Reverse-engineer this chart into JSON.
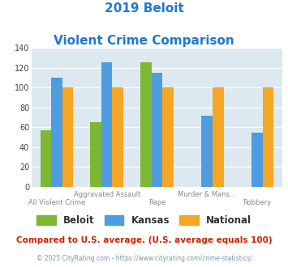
{
  "title_line1": "2019 Beloit",
  "title_line2": "Violent Crime Comparison",
  "title_color": "#1e7acc",
  "categories": [
    "All Violent Crime",
    "Aggravated Assault",
    "Rape",
    "Murder & Mans...",
    "Robbery"
  ],
  "top_labels": [
    "",
    "Aggravated Assault",
    "",
    "Murder & Mans...",
    ""
  ],
  "bot_labels": [
    "All Violent Crime",
    "",
    "Rape",
    "",
    "Robbery"
  ],
  "series": {
    "Beloit": [
      57,
      65,
      126,
      null,
      null
    ],
    "Kansas": [
      110,
      126,
      115,
      72,
      55
    ],
    "National": [
      100,
      100,
      100,
      100,
      100
    ]
  },
  "colors": {
    "Beloit": "#7db832",
    "Kansas": "#4d9de0",
    "National": "#f5a623"
  },
  "ylim": [
    0,
    140
  ],
  "yticks": [
    0,
    20,
    40,
    60,
    80,
    100,
    120,
    140
  ],
  "plot_bg": "#dce9f0",
  "grid_color": "#ffffff",
  "footnote1": "Compared to U.S. average. (U.S. average equals 100)",
  "footnote2": "© 2025 CityRating.com - https://www.cityrating.com/crime-statistics/",
  "footnote1_color": "#cc2200",
  "footnote2_color": "#7799aa",
  "bar_width": 0.22
}
